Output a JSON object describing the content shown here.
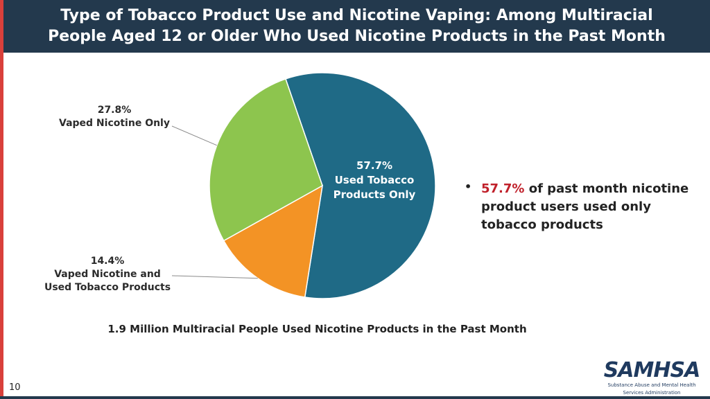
{
  "header": {
    "title_line1": "Type of Tobacco Product Use and Nicotine Vaping: Among Multiracial",
    "title_line2": "People Aged 12 or Older Who Used Nicotine Products in the Past Month"
  },
  "chart_data": {
    "type": "pie",
    "slices": [
      {
        "label_value": "57.7%",
        "label_lines": [
          "Used Tobacco",
          "Products Only"
        ],
        "value": 57.7,
        "color": "#1f6a86"
      },
      {
        "label_value": "14.4%",
        "label_lines": [
          "Vaped Nicotine and",
          "Used Tobacco Products"
        ],
        "value": 14.4,
        "color": "#f39325"
      },
      {
        "label_value": "27.8%",
        "label_lines": [
          "Vaped Nicotine Only"
        ],
        "value": 27.8,
        "color": "#8dc54e"
      }
    ],
    "caption": "1.9 Million Multiracial People Used Nicotine Products in the Past Month"
  },
  "bullet": {
    "highlight": "57.7%",
    "text": " of past month nicotine product users used only tobacco products",
    "highlight_color": "#c0202a"
  },
  "footer": {
    "page_number": "10",
    "logo_text": "SAMHSA",
    "logo_subtitle_line1": "Substance Abuse and Mental Health",
    "logo_subtitle_line2": "Services Administration"
  }
}
